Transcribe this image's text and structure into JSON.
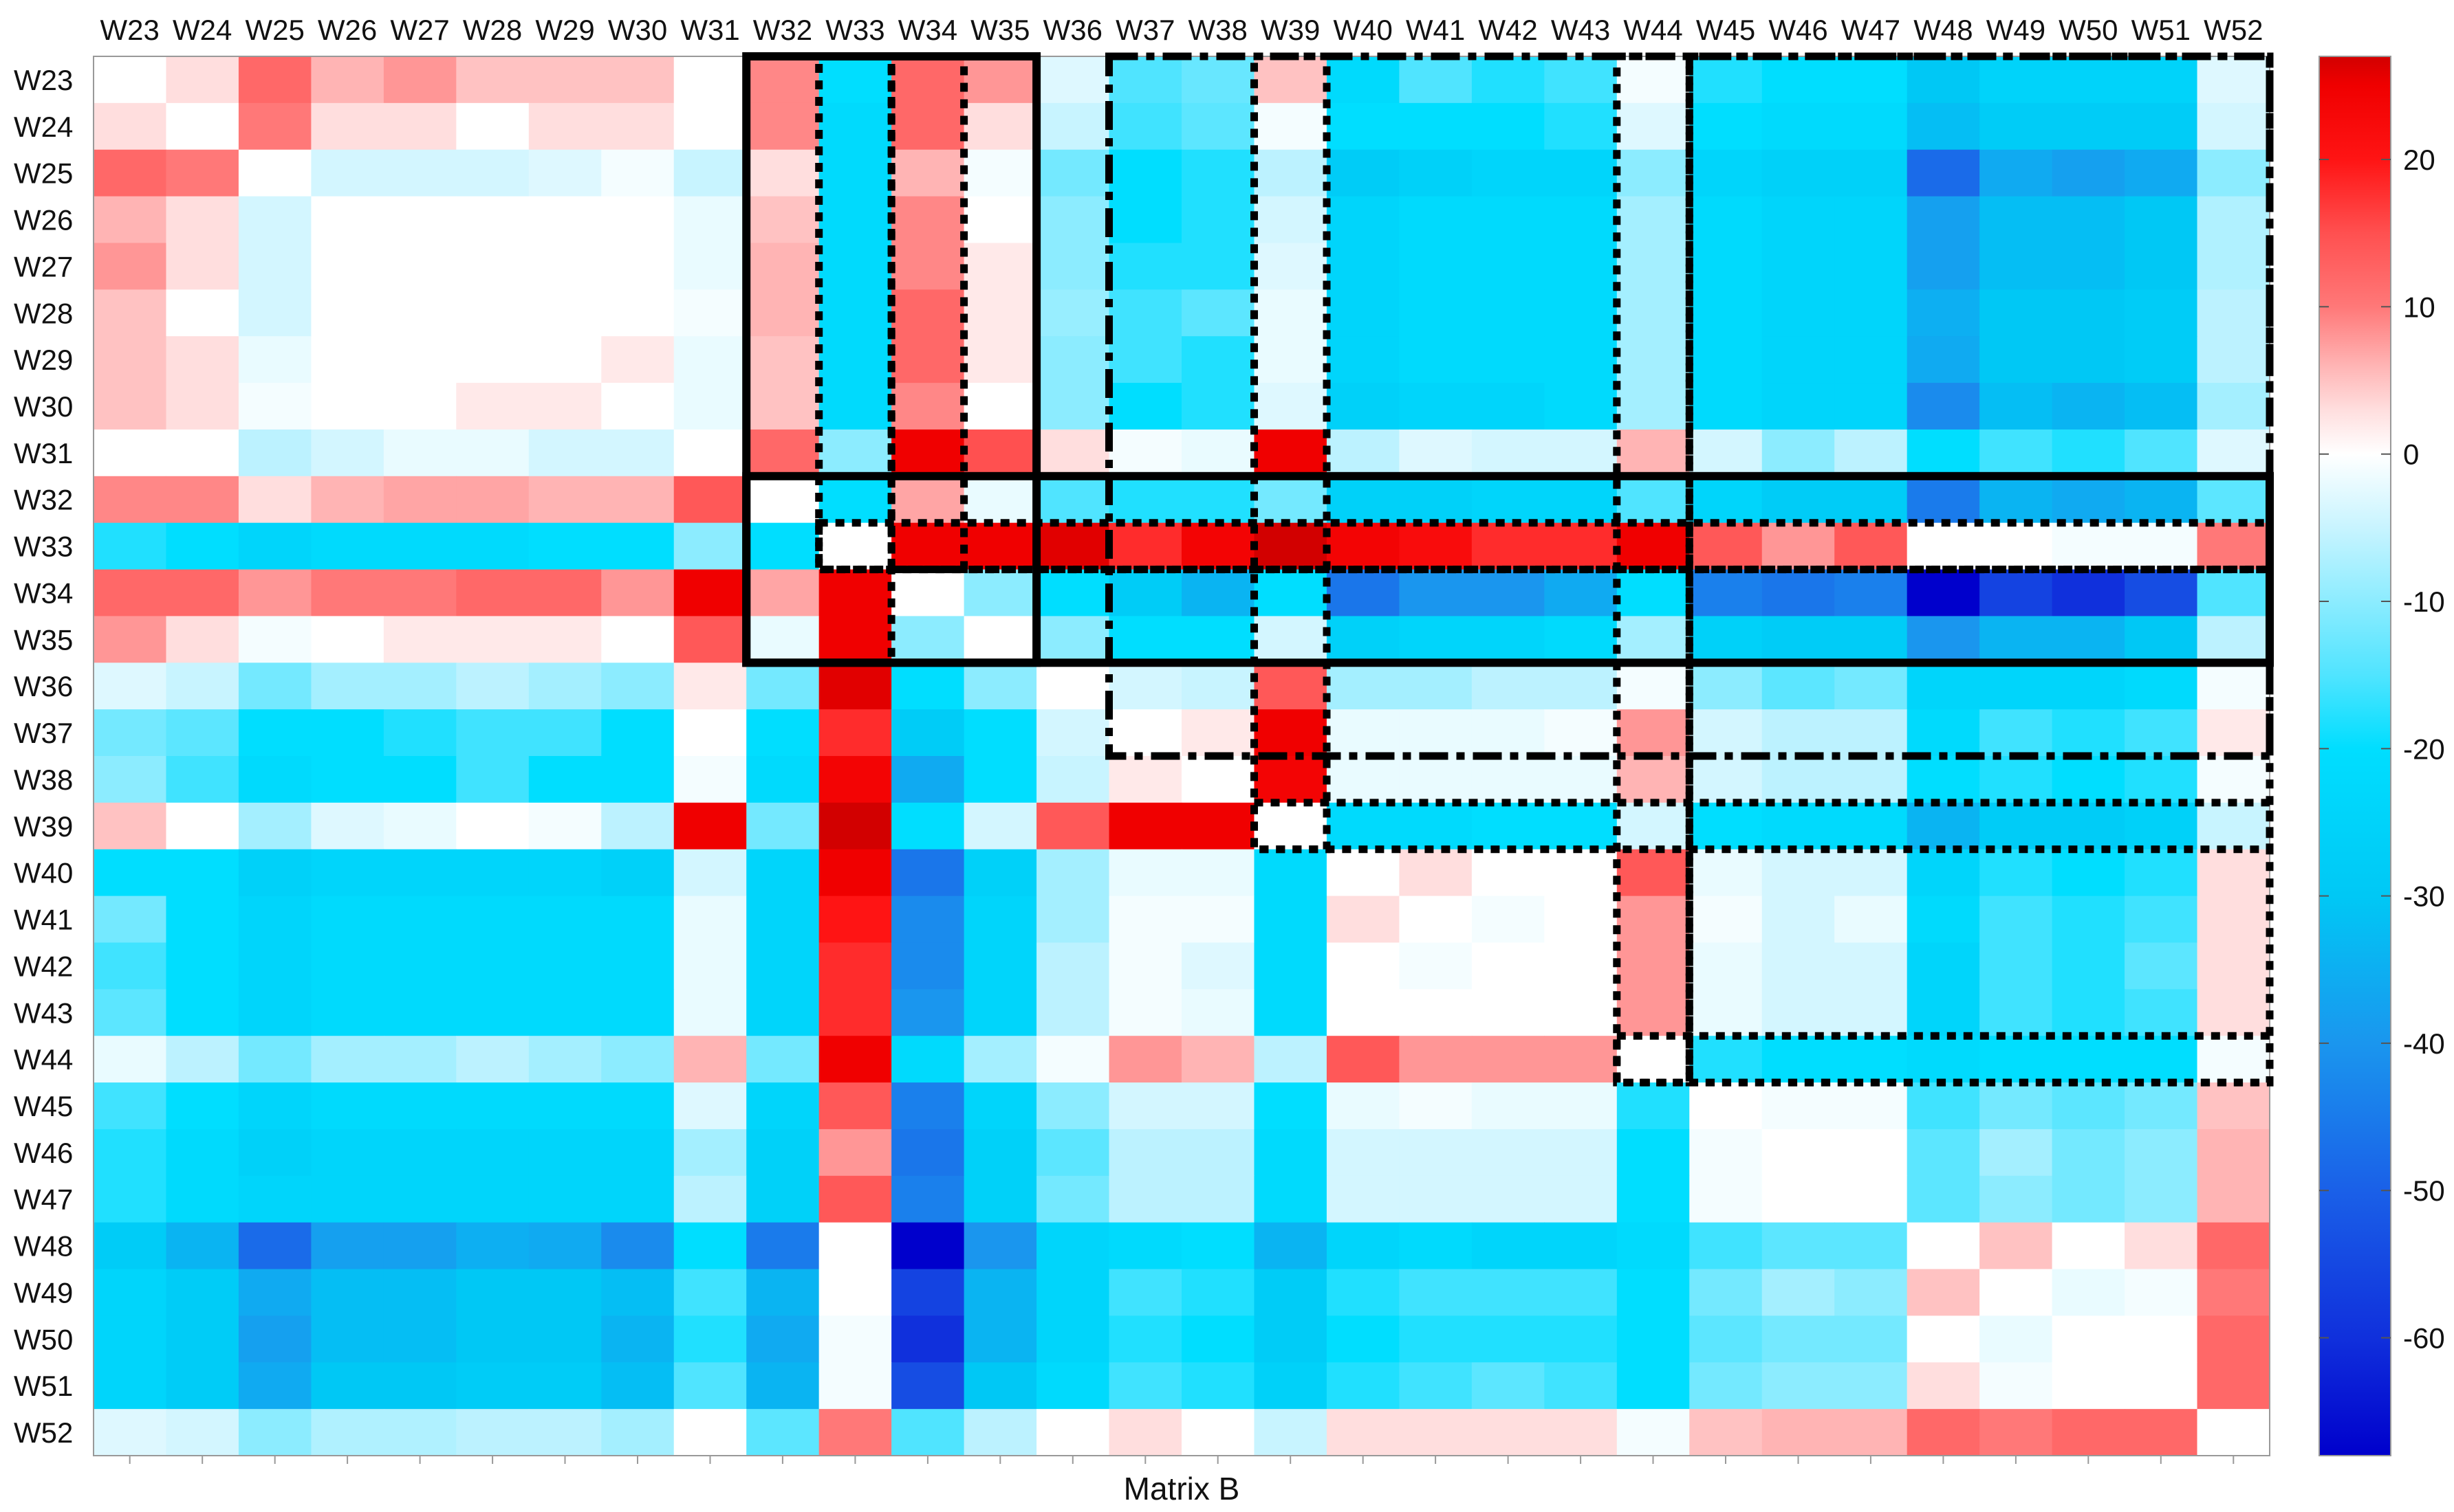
{
  "chart_data": {
    "type": "heatmap",
    "title": "",
    "xlabel": "Matrix B",
    "ylabel": "",
    "labels": [
      "W23",
      "W24",
      "W25",
      "W26",
      "W27",
      "W28",
      "W29",
      "W30",
      "W31",
      "W32",
      "W33",
      "W34",
      "W35",
      "W36",
      "W37",
      "W38",
      "W39",
      "W40",
      "W41",
      "W42",
      "W43",
      "W44",
      "W45",
      "W46",
      "W47",
      "W48",
      "W49",
      "W50",
      "W51",
      "W52"
    ],
    "colorbar": {
      "min": -68,
      "max": 27,
      "ticks": [
        20,
        10,
        0,
        -10,
        -20,
        -30,
        -40,
        -50,
        -60
      ],
      "tick_labels": [
        "20",
        "10",
        "0",
        "-10",
        "-20",
        "-30",
        "-40",
        "-50",
        "-60"
      ]
    },
    "values": [
      [
        0,
        3,
        12,
        6,
        8,
        5,
        5,
        5,
        0,
        9,
        -20,
        12,
        8,
        -3,
        -15,
        -13,
        5,
        -22,
        -15,
        -18,
        -16,
        -1,
        -18,
        -20,
        -20,
        -30,
        -25,
        -25,
        -25,
        -3
      ],
      [
        3,
        0,
        10,
        3,
        3,
        0,
        3,
        3,
        0,
        9,
        -22,
        12,
        3,
        -5,
        -16,
        -14,
        -1,
        -20,
        -20,
        -20,
        -18,
        -3,
        -20,
        -22,
        -22,
        -32,
        -28,
        -28,
        -28,
        -4
      ],
      [
        12,
        10,
        0,
        -4,
        -4,
        -4,
        -3,
        -1,
        -5,
        3,
        -22,
        6,
        -1,
        -12,
        -20,
        -18,
        -6,
        -28,
        -26,
        -24,
        -24,
        -10,
        -24,
        -26,
        -26,
        -48,
        -36,
        -38,
        -36,
        -10
      ],
      [
        6,
        3,
        -4,
        0,
        0,
        0,
        0,
        0,
        -2,
        5,
        -22,
        9,
        0,
        -10,
        -20,
        -18,
        -4,
        -24,
        -22,
        -22,
        -22,
        -8,
        -22,
        -24,
        -24,
        -38,
        -32,
        -32,
        -30,
        -7
      ],
      [
        8,
        3,
        -4,
        0,
        0,
        0,
        0,
        0,
        -2,
        6,
        -22,
        9,
        2,
        -10,
        -18,
        -18,
        -3,
        -24,
        -22,
        -22,
        -22,
        -8,
        -22,
        -24,
        -24,
        -38,
        -32,
        -32,
        -30,
        -7
      ],
      [
        5,
        0,
        -4,
        0,
        0,
        0,
        0,
        0,
        -1,
        6,
        -22,
        12,
        2,
        -9,
        -16,
        -14,
        -2,
        -24,
        -22,
        -22,
        -22,
        -8,
        -22,
        -24,
        -24,
        -35,
        -30,
        -30,
        -28,
        -6
      ],
      [
        5,
        3,
        -2,
        0,
        0,
        0,
        0,
        2,
        -2,
        5,
        -22,
        12,
        2,
        -10,
        -16,
        -18,
        -2,
        -24,
        -22,
        -22,
        -22,
        -8,
        -22,
        -24,
        -24,
        -36,
        -30,
        -30,
        -28,
        -6
      ],
      [
        5,
        3,
        -1,
        0,
        0,
        2,
        2,
        0,
        -2,
        5,
        -22,
        9,
        0,
        -10,
        -20,
        -18,
        -3,
        -26,
        -24,
        -24,
        -22,
        -8,
        -22,
        -24,
        -24,
        -42,
        -32,
        -34,
        -32,
        -8
      ],
      [
        0,
        0,
        -6,
        -4,
        -2,
        -2,
        -4,
        -4,
        0,
        12,
        -10,
        25,
        15,
        3,
        -1,
        -2,
        25,
        -6,
        -3,
        -4,
        -4,
        6,
        -4,
        -10,
        -6,
        -20,
        -16,
        -18,
        -15,
        -3
      ],
      [
        9,
        9,
        3,
        6,
        7,
        7,
        6,
        6,
        14,
        0,
        -20,
        7,
        -2,
        -15,
        -18,
        -18,
        -12,
        -26,
        -26,
        -24,
        -24,
        -15,
        -24,
        -28,
        -28,
        -45,
        -34,
        -36,
        -34,
        -14
      ],
      [
        -18,
        -20,
        -24,
        -22,
        -22,
        -22,
        -20,
        -20,
        -10,
        -20,
        0,
        25,
        25,
        26,
        18,
        24,
        27,
        24,
        22,
        18,
        18,
        25,
        14,
        8,
        14,
        0,
        0,
        -1,
        -1,
        10
      ],
      [
        12,
        12,
        8,
        10,
        10,
        12,
        12,
        8,
        25,
        7,
        25,
        0,
        -10,
        -20,
        -28,
        -34,
        -20,
        -46,
        -40,
        -40,
        -36,
        -20,
        -44,
        -46,
        -44,
        -68,
        -56,
        -60,
        -54,
        -15
      ],
      [
        8,
        3,
        -1,
        0,
        2,
        2,
        2,
        0,
        14,
        -2,
        25,
        -10,
        0,
        -10,
        -20,
        -20,
        -4,
        -26,
        -24,
        -24,
        -22,
        -8,
        -26,
        -28,
        -28,
        -40,
        -34,
        -34,
        -30,
        -6
      ],
      [
        -3,
        -5,
        -12,
        -8,
        -8,
        -6,
        -8,
        -10,
        2,
        -12,
        26,
        -20,
        -10,
        0,
        -4,
        -5,
        14,
        -8,
        -8,
        -6,
        -6,
        -1,
        -10,
        -14,
        -12,
        -24,
        -24,
        -24,
        -22,
        -1
      ],
      [
        -12,
        -14,
        -20,
        -20,
        -18,
        -16,
        -16,
        -20,
        0,
        -20,
        18,
        -28,
        -20,
        -4,
        0,
        2,
        25,
        -2,
        -2,
        -2,
        -1,
        8,
        -4,
        -6,
        -6,
        -22,
        -16,
        -18,
        -16,
        2
      ],
      [
        -10,
        -16,
        -22,
        -20,
        -20,
        -16,
        -20,
        -20,
        -1,
        -22,
        24,
        -36,
        -20,
        -5,
        2,
        0,
        24,
        -2,
        -2,
        -2,
        -2,
        6,
        -4,
        -6,
        -6,
        -20,
        -18,
        -20,
        -18,
        -1
      ],
      [
        5,
        0,
        -8,
        -3,
        -2,
        0,
        -1,
        -6,
        25,
        -12,
        27,
        -20,
        -4,
        14,
        25,
        25,
        0,
        -22,
        -22,
        -20,
        -20,
        -4,
        -20,
        -22,
        -22,
        -34,
        -28,
        -28,
        -26,
        -5
      ],
      [
        -20,
        -20,
        -26,
        -24,
        -24,
        -24,
        -24,
        -26,
        -4,
        -24,
        25,
        -46,
        -26,
        -8,
        -2,
        -2,
        -22,
        0,
        3,
        0,
        0,
        14,
        -2,
        -4,
        -4,
        -24,
        -18,
        -20,
        -18,
        3
      ],
      [
        -12,
        -20,
        -24,
        -22,
        -22,
        -22,
        -22,
        -22,
        -2,
        -24,
        20,
        -42,
        -24,
        -8,
        -1,
        -1,
        -22,
        3,
        0,
        -1,
        0,
        8,
        -1,
        -4,
        -2,
        -22,
        -16,
        -18,
        -16,
        3
      ],
      [
        -16,
        -20,
        -24,
        -22,
        -22,
        -22,
        -22,
        -22,
        -2,
        -24,
        18,
        -42,
        -24,
        -6,
        -1,
        -3,
        -22,
        0,
        -1,
        0,
        0,
        8,
        -2,
        -4,
        -4,
        -24,
        -16,
        -18,
        -14,
        3
      ],
      [
        -14,
        -20,
        -24,
        -22,
        -22,
        -22,
        -22,
        -22,
        -2,
        -24,
        18,
        -40,
        -24,
        -6,
        -1,
        -2,
        -22,
        0,
        0,
        0,
        0,
        8,
        -2,
        -4,
        -4,
        -24,
        -16,
        -18,
        -16,
        3
      ],
      [
        -2,
        -6,
        -12,
        -8,
        -8,
        -6,
        -8,
        -10,
        6,
        -12,
        25,
        -22,
        -8,
        -1,
        8,
        6,
        -6,
        14,
        8,
        8,
        8,
        0,
        -18,
        -20,
        -20,
        -22,
        -20,
        -20,
        -20,
        -1
      ],
      [
        -16,
        -20,
        -24,
        -22,
        -22,
        -22,
        -22,
        -22,
        -3,
        -24,
        14,
        -44,
        -24,
        -10,
        -4,
        -4,
        -20,
        -2,
        -1,
        -2,
        -2,
        -18,
        0,
        -1,
        -1,
        -16,
        -12,
        -14,
        -12,
        5
      ],
      [
        -18,
        -22,
        -26,
        -24,
        -24,
        -24,
        -24,
        -24,
        -8,
        -26,
        8,
        -46,
        -26,
        -14,
        -6,
        -6,
        -22,
        -4,
        -4,
        -4,
        -4,
        -20,
        -1,
        0,
        0,
        -14,
        -8,
        -12,
        -10,
        6
      ],
      [
        -18,
        -22,
        -24,
        -24,
        -24,
        -24,
        -24,
        -24,
        -6,
        -26,
        14,
        -44,
        -26,
        -12,
        -6,
        -6,
        -22,
        -4,
        -4,
        -4,
        -4,
        -20,
        -1,
        0,
        0,
        -14,
        -10,
        -12,
        -10,
        6
      ],
      [
        -28,
        -34,
        -48,
        -38,
        -38,
        -35,
        -36,
        -42,
        -20,
        -45,
        0,
        -68,
        -40,
        -24,
        -22,
        -20,
        -34,
        -24,
        -22,
        -24,
        -24,
        -22,
        -16,
        -14,
        -14,
        0,
        5,
        0,
        3,
        12
      ],
      [
        -24,
        -28,
        -36,
        -32,
        -32,
        -30,
        -30,
        -32,
        -16,
        -34,
        0,
        -56,
        -34,
        -24,
        -16,
        -18,
        -28,
        -18,
        -16,
        -16,
        -16,
        -20,
        -12,
        -8,
        -10,
        5,
        0,
        -2,
        -1,
        10
      ],
      [
        -24,
        -28,
        -38,
        -32,
        -32,
        -30,
        -30,
        -34,
        -18,
        -36,
        -1,
        -60,
        -34,
        -24,
        -18,
        -20,
        -28,
        -20,
        -18,
        -18,
        -18,
        -20,
        -14,
        -12,
        -12,
        0,
        -2,
        0,
        0,
        12
      ],
      [
        -24,
        -28,
        -36,
        -30,
        -30,
        -28,
        -28,
        -32,
        -15,
        -34,
        -1,
        -54,
        -30,
        -22,
        -16,
        -18,
        -26,
        -18,
        -16,
        -14,
        -16,
        -20,
        -12,
        -10,
        -10,
        3,
        -1,
        0,
        0,
        12
      ],
      [
        -3,
        -4,
        -10,
        -7,
        -7,
        -6,
        -6,
        -8,
        0,
        -14,
        10,
        -15,
        -6,
        0,
        3,
        0,
        -5,
        3,
        3,
        3,
        3,
        -1,
        5,
        6,
        6,
        12,
        10,
        12,
        12,
        0
      ]
    ],
    "annotations": [
      {
        "style": "solid",
        "rows": [
          "W23",
          "W35"
        ],
        "cols": [
          "W32",
          "W35"
        ]
      },
      {
        "style": "solid",
        "rows": [
          "W32",
          "W35"
        ],
        "cols": [
          "W32",
          "W52"
        ]
      },
      {
        "style": "dotted",
        "rows": [
          "W23",
          "W33"
        ],
        "cols": [
          "W33",
          "W33"
        ]
      },
      {
        "style": "dotted",
        "rows": [
          "W23",
          "W33"
        ],
        "cols": [
          "W34",
          "W34"
        ]
      },
      {
        "style": "dotted",
        "rows": [
          "W33",
          "W33"
        ],
        "cols": [
          "W33",
          "W52"
        ]
      },
      {
        "style": "dotted",
        "rows": [
          "W34",
          "W35"
        ],
        "cols": [
          "W34",
          "W52"
        ]
      },
      {
        "style": "dashdot",
        "rows": [
          "W23",
          "W37"
        ],
        "cols": [
          "W37",
          "W52"
        ]
      },
      {
        "style": "dotted",
        "rows": [
          "W23",
          "W39"
        ],
        "cols": [
          "W39",
          "W39"
        ]
      },
      {
        "style": "dotted",
        "rows": [
          "W39",
          "W39"
        ],
        "cols": [
          "W39",
          "W52"
        ]
      },
      {
        "style": "dotted",
        "rows": [
          "W23",
          "W44"
        ],
        "cols": [
          "W44",
          "W44"
        ]
      },
      {
        "style": "dotted",
        "rows": [
          "W23",
          "W44"
        ],
        "cols": [
          "W45",
          "W52"
        ]
      },
      {
        "style": "dotted",
        "rows": [
          "W44",
          "W44"
        ],
        "cols": [
          "W44",
          "W52"
        ]
      }
    ]
  }
}
